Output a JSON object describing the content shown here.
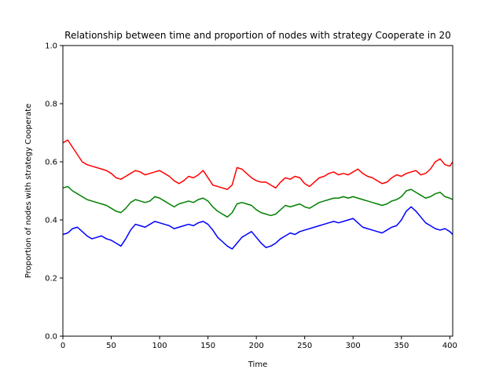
{
  "chart_data": {
    "type": "line",
    "title": "Relationship between time and proportion of nodes with strategy Cooperate in 20",
    "xlabel": "Time",
    "ylabel": "Proportion of nodes with strategy Cooperate",
    "xlim": [
      0,
      403
    ],
    "ylim": [
      0.0,
      1.0
    ],
    "xticks": [
      "0",
      "50",
      "100",
      "150",
      "200",
      "250",
      "300",
      "350",
      "400"
    ],
    "yticks": [
      "0.0",
      "0.2",
      "0.4",
      "0.6",
      "0.8",
      "1.0"
    ],
    "grid": false,
    "legend": "none",
    "series": [
      {
        "color": "#ff0000",
        "points": [
          [
            0,
            0.665
          ],
          [
            5,
            0.675
          ],
          [
            10,
            0.65
          ],
          [
            15,
            0.625
          ],
          [
            20,
            0.6
          ],
          [
            25,
            0.59
          ],
          [
            30,
            0.585
          ],
          [
            35,
            0.58
          ],
          [
            40,
            0.575
          ],
          [
            45,
            0.57
          ],
          [
            50,
            0.56
          ],
          [
            55,
            0.545
          ],
          [
            60,
            0.54
          ],
          [
            65,
            0.55
          ],
          [
            70,
            0.56
          ],
          [
            75,
            0.57
          ],
          [
            80,
            0.565
          ],
          [
            85,
            0.555
          ],
          [
            90,
            0.56
          ],
          [
            95,
            0.565
          ],
          [
            100,
            0.57
          ],
          [
            105,
            0.56
          ],
          [
            110,
            0.55
          ],
          [
            115,
            0.535
          ],
          [
            120,
            0.525
          ],
          [
            125,
            0.535
          ],
          [
            130,
            0.55
          ],
          [
            135,
            0.545
          ],
          [
            140,
            0.555
          ],
          [
            145,
            0.57
          ],
          [
            150,
            0.545
          ],
          [
            155,
            0.52
          ],
          [
            160,
            0.515
          ],
          [
            165,
            0.51
          ],
          [
            170,
            0.505
          ],
          [
            175,
            0.52
          ],
          [
            180,
            0.58
          ],
          [
            185,
            0.575
          ],
          [
            190,
            0.56
          ],
          [
            195,
            0.545
          ],
          [
            200,
            0.535
          ],
          [
            205,
            0.53
          ],
          [
            210,
            0.53
          ],
          [
            215,
            0.52
          ],
          [
            220,
            0.51
          ],
          [
            225,
            0.53
          ],
          [
            230,
            0.545
          ],
          [
            235,
            0.54
          ],
          [
            240,
            0.55
          ],
          [
            245,
            0.545
          ],
          [
            250,
            0.525
          ],
          [
            255,
            0.515
          ],
          [
            260,
            0.53
          ],
          [
            265,
            0.545
          ],
          [
            270,
            0.55
          ],
          [
            275,
            0.56
          ],
          [
            280,
            0.565
          ],
          [
            285,
            0.555
          ],
          [
            290,
            0.56
          ],
          [
            295,
            0.555
          ],
          [
            300,
            0.565
          ],
          [
            305,
            0.575
          ],
          [
            310,
            0.56
          ],
          [
            315,
            0.55
          ],
          [
            320,
            0.545
          ],
          [
            325,
            0.535
          ],
          [
            330,
            0.525
          ],
          [
            335,
            0.53
          ],
          [
            340,
            0.545
          ],
          [
            345,
            0.555
          ],
          [
            350,
            0.55
          ],
          [
            355,
            0.56
          ],
          [
            360,
            0.565
          ],
          [
            365,
            0.57
          ],
          [
            370,
            0.555
          ],
          [
            375,
            0.56
          ],
          [
            380,
            0.575
          ],
          [
            385,
            0.6
          ],
          [
            390,
            0.61
          ],
          [
            395,
            0.59
          ],
          [
            400,
            0.585
          ],
          [
            403,
            0.6
          ]
        ]
      },
      {
        "color": "#008000",
        "points": [
          [
            0,
            0.51
          ],
          [
            5,
            0.515
          ],
          [
            10,
            0.5
          ],
          [
            15,
            0.49
          ],
          [
            20,
            0.48
          ],
          [
            25,
            0.47
          ],
          [
            30,
            0.465
          ],
          [
            35,
            0.46
          ],
          [
            40,
            0.455
          ],
          [
            45,
            0.45
          ],
          [
            50,
            0.44
          ],
          [
            55,
            0.43
          ],
          [
            60,
            0.425
          ],
          [
            65,
            0.44
          ],
          [
            70,
            0.46
          ],
          [
            75,
            0.47
          ],
          [
            80,
            0.465
          ],
          [
            85,
            0.46
          ],
          [
            90,
            0.465
          ],
          [
            95,
            0.48
          ],
          [
            100,
            0.475
          ],
          [
            105,
            0.465
          ],
          [
            110,
            0.455
          ],
          [
            115,
            0.445
          ],
          [
            120,
            0.455
          ],
          [
            125,
            0.46
          ],
          [
            130,
            0.465
          ],
          [
            135,
            0.46
          ],
          [
            140,
            0.47
          ],
          [
            145,
            0.475
          ],
          [
            150,
            0.465
          ],
          [
            155,
            0.445
          ],
          [
            160,
            0.43
          ],
          [
            165,
            0.42
          ],
          [
            170,
            0.41
          ],
          [
            175,
            0.425
          ],
          [
            180,
            0.455
          ],
          [
            185,
            0.46
          ],
          [
            190,
            0.455
          ],
          [
            195,
            0.45
          ],
          [
            200,
            0.435
          ],
          [
            205,
            0.425
          ],
          [
            210,
            0.42
          ],
          [
            215,
            0.415
          ],
          [
            220,
            0.42
          ],
          [
            225,
            0.435
          ],
          [
            230,
            0.45
          ],
          [
            235,
            0.445
          ],
          [
            240,
            0.45
          ],
          [
            245,
            0.455
          ],
          [
            250,
            0.445
          ],
          [
            255,
            0.44
          ],
          [
            260,
            0.45
          ],
          [
            265,
            0.46
          ],
          [
            270,
            0.465
          ],
          [
            275,
            0.47
          ],
          [
            280,
            0.475
          ],
          [
            285,
            0.475
          ],
          [
            290,
            0.48
          ],
          [
            295,
            0.475
          ],
          [
            300,
            0.48
          ],
          [
            305,
            0.475
          ],
          [
            310,
            0.47
          ],
          [
            315,
            0.465
          ],
          [
            320,
            0.46
          ],
          [
            325,
            0.455
          ],
          [
            330,
            0.45
          ],
          [
            335,
            0.455
          ],
          [
            340,
            0.465
          ],
          [
            345,
            0.47
          ],
          [
            350,
            0.48
          ],
          [
            355,
            0.5
          ],
          [
            360,
            0.505
          ],
          [
            365,
            0.495
          ],
          [
            370,
            0.485
          ],
          [
            375,
            0.475
          ],
          [
            380,
            0.48
          ],
          [
            385,
            0.49
          ],
          [
            390,
            0.495
          ],
          [
            395,
            0.48
          ],
          [
            400,
            0.475
          ],
          [
            403,
            0.47
          ]
        ]
      },
      {
        "color": "#0000ff",
        "points": [
          [
            0,
            0.35
          ],
          [
            5,
            0.355
          ],
          [
            10,
            0.37
          ],
          [
            15,
            0.375
          ],
          [
            20,
            0.36
          ],
          [
            25,
            0.345
          ],
          [
            30,
            0.335
          ],
          [
            35,
            0.34
          ],
          [
            40,
            0.345
          ],
          [
            45,
            0.335
          ],
          [
            50,
            0.33
          ],
          [
            55,
            0.32
          ],
          [
            60,
            0.31
          ],
          [
            65,
            0.335
          ],
          [
            70,
            0.365
          ],
          [
            75,
            0.385
          ],
          [
            80,
            0.38
          ],
          [
            85,
            0.375
          ],
          [
            90,
            0.385
          ],
          [
            95,
            0.395
          ],
          [
            100,
            0.39
          ],
          [
            105,
            0.385
          ],
          [
            110,
            0.38
          ],
          [
            115,
            0.37
          ],
          [
            120,
            0.375
          ],
          [
            125,
            0.38
          ],
          [
            130,
            0.385
          ],
          [
            135,
            0.38
          ],
          [
            140,
            0.39
          ],
          [
            145,
            0.395
          ],
          [
            150,
            0.385
          ],
          [
            155,
            0.365
          ],
          [
            160,
            0.34
          ],
          [
            165,
            0.325
          ],
          [
            170,
            0.31
          ],
          [
            175,
            0.3
          ],
          [
            180,
            0.32
          ],
          [
            185,
            0.34
          ],
          [
            190,
            0.35
          ],
          [
            195,
            0.36
          ],
          [
            200,
            0.34
          ],
          [
            205,
            0.32
          ],
          [
            210,
            0.305
          ],
          [
            215,
            0.31
          ],
          [
            220,
            0.32
          ],
          [
            225,
            0.335
          ],
          [
            230,
            0.345
          ],
          [
            235,
            0.355
          ],
          [
            240,
            0.35
          ],
          [
            245,
            0.36
          ],
          [
            250,
            0.365
          ],
          [
            255,
            0.37
          ],
          [
            260,
            0.375
          ],
          [
            265,
            0.38
          ],
          [
            270,
            0.385
          ],
          [
            275,
            0.39
          ],
          [
            280,
            0.395
          ],
          [
            285,
            0.39
          ],
          [
            290,
            0.395
          ],
          [
            295,
            0.4
          ],
          [
            300,
            0.405
          ],
          [
            305,
            0.39
          ],
          [
            310,
            0.375
          ],
          [
            315,
            0.37
          ],
          [
            320,
            0.365
          ],
          [
            325,
            0.36
          ],
          [
            330,
            0.355
          ],
          [
            335,
            0.365
          ],
          [
            340,
            0.375
          ],
          [
            345,
            0.38
          ],
          [
            350,
            0.4
          ],
          [
            355,
            0.43
          ],
          [
            360,
            0.445
          ],
          [
            365,
            0.43
          ],
          [
            370,
            0.41
          ],
          [
            375,
            0.39
          ],
          [
            380,
            0.38
          ],
          [
            385,
            0.37
          ],
          [
            390,
            0.365
          ],
          [
            395,
            0.37
          ],
          [
            400,
            0.36
          ],
          [
            403,
            0.35
          ]
        ]
      }
    ]
  }
}
